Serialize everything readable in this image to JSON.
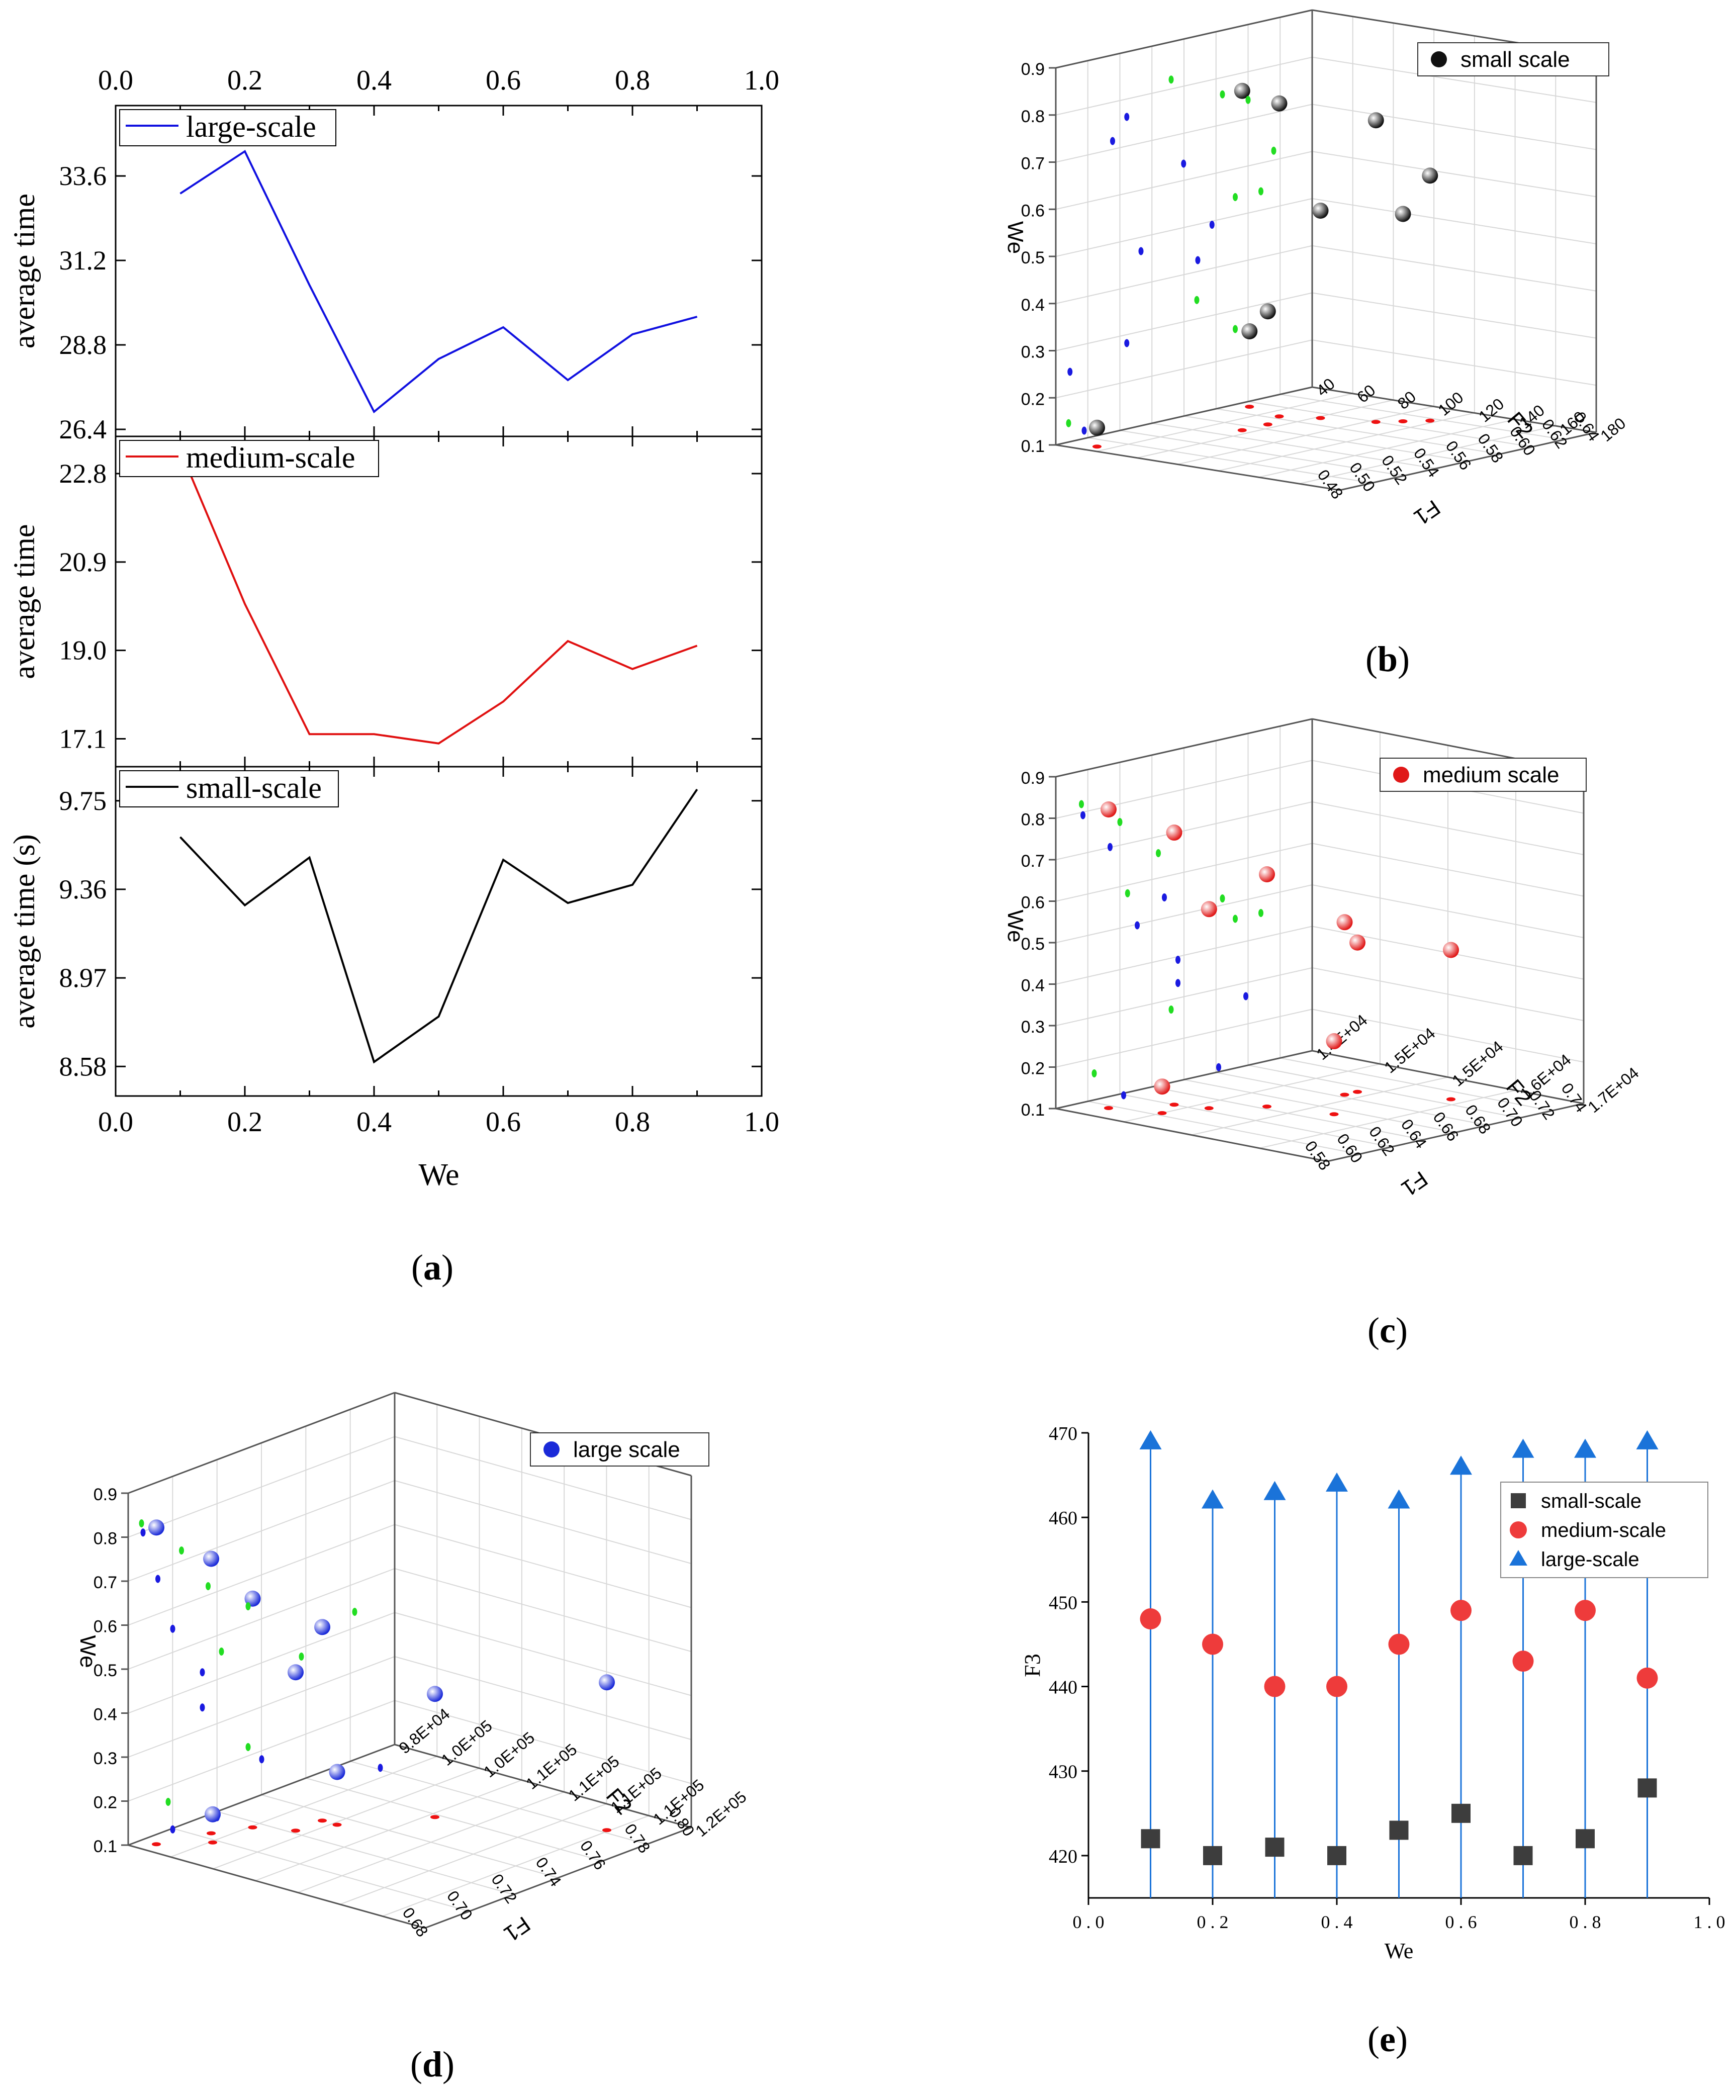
{
  "figure": {
    "panel_a": {
      "caption_letter": "a"
    },
    "panel_b": {
      "caption_letter": "b"
    },
    "panel_c": {
      "caption_letter": "c"
    },
    "panel_d": {
      "caption_letter": "d"
    },
    "panel_e": {
      "caption_letter": "e"
    }
  },
  "chart_data": [
    {
      "id": "a-large",
      "type": "line",
      "panel": "a",
      "legend": "large-scale",
      "color": "#1010e0",
      "xlabel": "We",
      "ylabel": "average time",
      "xlim": [
        0,
        1
      ],
      "ylim": [
        26.2,
        35.6
      ],
      "xticks": [
        "0.0",
        "0.2",
        "0.4",
        "0.6",
        "0.8",
        "1.0"
      ],
      "yticks": [
        "26.4",
        "28.8",
        "31.2",
        "33.6"
      ],
      "x": [
        0.1,
        0.2,
        0.3,
        0.4,
        0.5,
        0.6,
        0.7,
        0.8,
        0.9
      ],
      "y": [
        33.1,
        34.3,
        30.5,
        26.9,
        28.4,
        29.3,
        27.8,
        29.1,
        29.6
      ]
    },
    {
      "id": "a-medium",
      "type": "line",
      "panel": "a",
      "legend": "medium-scale",
      "color": "#e01010",
      "ylabel": "average time",
      "xlim": [
        0,
        1
      ],
      "ylim": [
        16.5,
        23.6
      ],
      "yticks": [
        "17.1",
        "19.0",
        "20.9",
        "22.8"
      ],
      "x": [
        0.1,
        0.2,
        0.3,
        0.4,
        0.5,
        0.6,
        0.7,
        0.8,
        0.9
      ],
      "y": [
        23.3,
        20.0,
        17.2,
        17.2,
        17.0,
        17.9,
        19.2,
        18.6,
        19.1
      ]
    },
    {
      "id": "a-small",
      "type": "line",
      "panel": "a",
      "legend": "small-scale",
      "color": "#000000",
      "ylabel": "average time (s)",
      "xlabel": "We",
      "xlim": [
        0,
        1
      ],
      "ylim": [
        8.45,
        9.9
      ],
      "yticks": [
        "8.58",
        "8.97",
        "9.36",
        "9.75"
      ],
      "xticks": [
        "0.0",
        "0.2",
        "0.4",
        "0.6",
        "0.8",
        "1.0"
      ],
      "x": [
        0.1,
        0.2,
        0.3,
        0.4,
        0.5,
        0.6,
        0.7,
        0.8,
        0.9
      ],
      "y": [
        9.59,
        9.29,
        9.5,
        8.6,
        8.8,
        9.49,
        9.3,
        9.38,
        9.8
      ]
    },
    {
      "id": "b",
      "type": "scatter",
      "panel": "b",
      "legend": "small scale",
      "xlabel": "F1",
      "ylabel": "We",
      "zlabel": "F2",
      "f1ticks": [
        "0.48",
        "0.50",
        "0.52",
        "0.54",
        "0.56",
        "0.58",
        "0.60",
        "0.62",
        "0.64"
      ],
      "f2ticks": [
        "40",
        "60",
        "80",
        "100",
        "120",
        "140",
        "160",
        "180"
      ],
      "weticks": [
        "0.1",
        "0.2",
        "0.3",
        "0.4",
        "0.5",
        "0.6",
        "0.7",
        "0.8",
        "0.9"
      ]
    },
    {
      "id": "c",
      "type": "scatter",
      "panel": "c",
      "legend": "medium scale",
      "xlabel": "F1",
      "ylabel": "We",
      "zlabel": "F2",
      "f1ticks": [
        "0.58",
        "0.60",
        "0.62",
        "0.64",
        "0.66",
        "0.68",
        "0.70",
        "0.72",
        "0.74"
      ],
      "f2ticks": [
        "1.4E+04",
        "1.5E+04",
        "1.5E+04",
        "1.6E+04",
        "1.7E+04"
      ],
      "weticks": [
        "0.1",
        "0.2",
        "0.3",
        "0.4",
        "0.5",
        "0.6",
        "0.7",
        "0.8",
        "0.9"
      ]
    },
    {
      "id": "d",
      "type": "scatter",
      "panel": "d",
      "legend": "large scale",
      "xlabel": "F1",
      "ylabel": "We",
      "zlabel": "F2",
      "f1ticks": [
        "0.68",
        "0.70",
        "0.72",
        "0.74",
        "0.76",
        "0.78",
        "0.80"
      ],
      "f2ticks": [
        "9.8E+04",
        "1.0E+05",
        "1.0E+05",
        "1.1E+05",
        "1.1E+05",
        "1.1E+05",
        "1.1E+05",
        "1.2E+05"
      ],
      "weticks": [
        "0.1",
        "0.2",
        "0.3",
        "0.4",
        "0.5",
        "0.6",
        "0.7",
        "0.8",
        "0.9"
      ]
    },
    {
      "id": "e",
      "type": "scatter",
      "panel": "e",
      "xlabel": "We",
      "ylabel": "F3",
      "xlim": [
        0,
        1
      ],
      "ylim": [
        415,
        470
      ],
      "xticks": [
        "0.0",
        "0.2",
        "0.4",
        "0.6",
        "0.8",
        "1.0"
      ],
      "yticks": [
        "420",
        "430",
        "440",
        "450",
        "460",
        "470"
      ],
      "x": [
        0.1,
        0.2,
        0.3,
        0.4,
        0.5,
        0.6,
        0.7,
        0.8,
        0.9
      ],
      "series": [
        {
          "name": "small-scale",
          "color": "#3d3d3d",
          "marker": "square",
          "values": [
            422,
            420,
            421,
            420,
            423,
            425,
            420,
            422,
            428
          ]
        },
        {
          "name": "medium-scale",
          "color": "#ee3b3b",
          "marker": "circle",
          "values": [
            448,
            445,
            440,
            440,
            445,
            449,
            443,
            449,
            441
          ]
        },
        {
          "name": "large-scale",
          "color": "#1a73d9",
          "marker": "triangle",
          "values": [
            469,
            462,
            463,
            464,
            462,
            466,
            468,
            468,
            469
          ]
        }
      ]
    }
  ]
}
